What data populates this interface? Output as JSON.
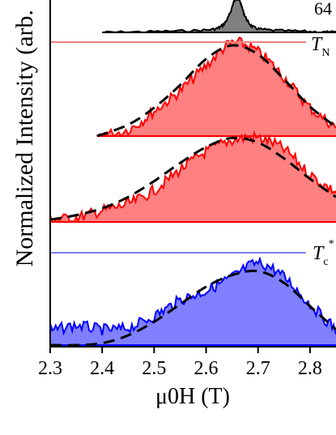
{
  "chart_data": {
    "type": "area",
    "title": "",
    "xlabel": "μ0H (T)",
    "ylabel": "Normalized Intensity (arb.",
    "xlim": [
      2.3,
      2.85
    ],
    "x_ticks": [
      "2.3",
      "2.4",
      "2.5",
      "2.6",
      "2.7",
      "2.8"
    ],
    "grid": false,
    "series": [
      {
        "color": "#000000",
        "fill": "#808080",
        "label_text": "64",
        "x": [
          2.4,
          2.5,
          2.6,
          2.63,
          2.645,
          2.655,
          2.665,
          2.675,
          2.69,
          2.72,
          2.8,
          2.85
        ],
        "y": [
          0.0,
          0.01,
          0.03,
          0.08,
          0.22,
          0.4,
          0.38,
          0.2,
          0.07,
          0.03,
          0.01,
          0.0
        ]
      },
      {
        "color": "#ff0000",
        "fill": "#ff8080",
        "x": [
          2.39,
          2.45,
          2.5,
          2.55,
          2.6,
          2.65,
          2.7,
          2.75,
          2.8,
          2.85
        ],
        "y": [
          0.0,
          0.06,
          0.22,
          0.4,
          0.62,
          0.82,
          0.74,
          0.52,
          0.25,
          0.08
        ],
        "fit_y": [
          0.0,
          0.1,
          0.25,
          0.45,
          0.68,
          0.8,
          0.72,
          0.5,
          0.26,
          0.08
        ]
      },
      {
        "color": "#ff0000",
        "fill": "#ff8080",
        "x": [
          2.3,
          2.35,
          2.4,
          2.45,
          2.5,
          2.55,
          2.6,
          2.65,
          2.7,
          2.75,
          2.8,
          2.85
        ],
        "y": [
          0.02,
          0.04,
          0.1,
          0.16,
          0.28,
          0.46,
          0.62,
          0.72,
          0.74,
          0.64,
          0.42,
          0.26
        ],
        "fit_y": [
          0.02,
          0.06,
          0.12,
          0.22,
          0.36,
          0.52,
          0.66,
          0.74,
          0.7,
          0.56,
          0.38,
          0.22
        ]
      },
      {
        "color": "#0000ff",
        "fill": "#8080ff",
        "x": [
          2.3,
          2.35,
          2.4,
          2.45,
          2.5,
          2.55,
          2.6,
          2.65,
          2.7,
          2.75,
          2.8,
          2.85
        ],
        "y": [
          0.14,
          0.2,
          0.16,
          0.18,
          0.3,
          0.46,
          0.56,
          0.7,
          0.84,
          0.7,
          0.42,
          0.16
        ],
        "fit_y": [
          0.0,
          0.0,
          0.02,
          0.1,
          0.24,
          0.42,
          0.6,
          0.72,
          0.76,
          0.64,
          0.4,
          0.16
        ]
      }
    ],
    "reference_lines": [
      {
        "label_main": "T",
        "label_sub": "N",
        "label_sup": "",
        "color": "#f08080"
      },
      {
        "label_main": "T",
        "label_sub": "c",
        "label_sup": "*",
        "color": "#8080f0"
      }
    ]
  }
}
